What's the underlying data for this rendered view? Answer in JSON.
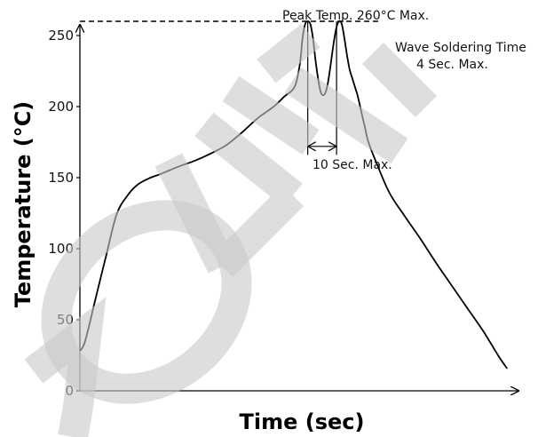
{
  "chart_data": {
    "type": "line",
    "xlabel": "Time (sec)",
    "ylabel": "Temperature (°C)",
    "ylim": [
      0,
      275
    ],
    "y_ticks": [
      0,
      50,
      100,
      150,
      200,
      250
    ],
    "grid": false,
    "series": [
      {
        "x": [
          0,
          2,
          6,
          10,
          14,
          18,
          22,
          27,
          30,
          34,
          38,
          44,
          50,
          56,
          62,
          68,
          74,
          78,
          82,
          84,
          85,
          86,
          87,
          88,
          89,
          90,
          91,
          92,
          93,
          94,
          95,
          96,
          97,
          98,
          99,
          100,
          101,
          102,
          103,
          104,
          105,
          106,
          107,
          108,
          109,
          110,
          112,
          118,
          124,
          130,
          136,
          142,
          148,
          154,
          160,
          163
        ],
        "y": [
          28,
          35,
          65,
          95,
          124,
          137,
          145,
          150,
          152,
          155,
          158,
          162,
          167,
          173,
          182,
          192,
          200,
          207,
          214,
          230,
          248,
          258,
          260,
          258,
          248,
          232,
          219,
          210,
          208,
          211,
          220,
          233,
          246,
          256,
          260,
          258,
          248,
          236,
          226,
          220,
          214,
          208,
          200,
          192,
          184,
          176,
          166,
          140,
          123,
          107,
          90,
          74,
          58,
          42,
          24,
          16
        ]
      }
    ],
    "reference_lines": [
      {
        "axis": "y",
        "value": 260,
        "style": "dashed"
      }
    ],
    "annotations": {
      "peak": "Peak Temp. 260°C Max.",
      "wave_line1": "Wave Soldering Time",
      "wave_line2": "4 Sec. Max.",
      "interval": "10 Sec. Max."
    }
  }
}
